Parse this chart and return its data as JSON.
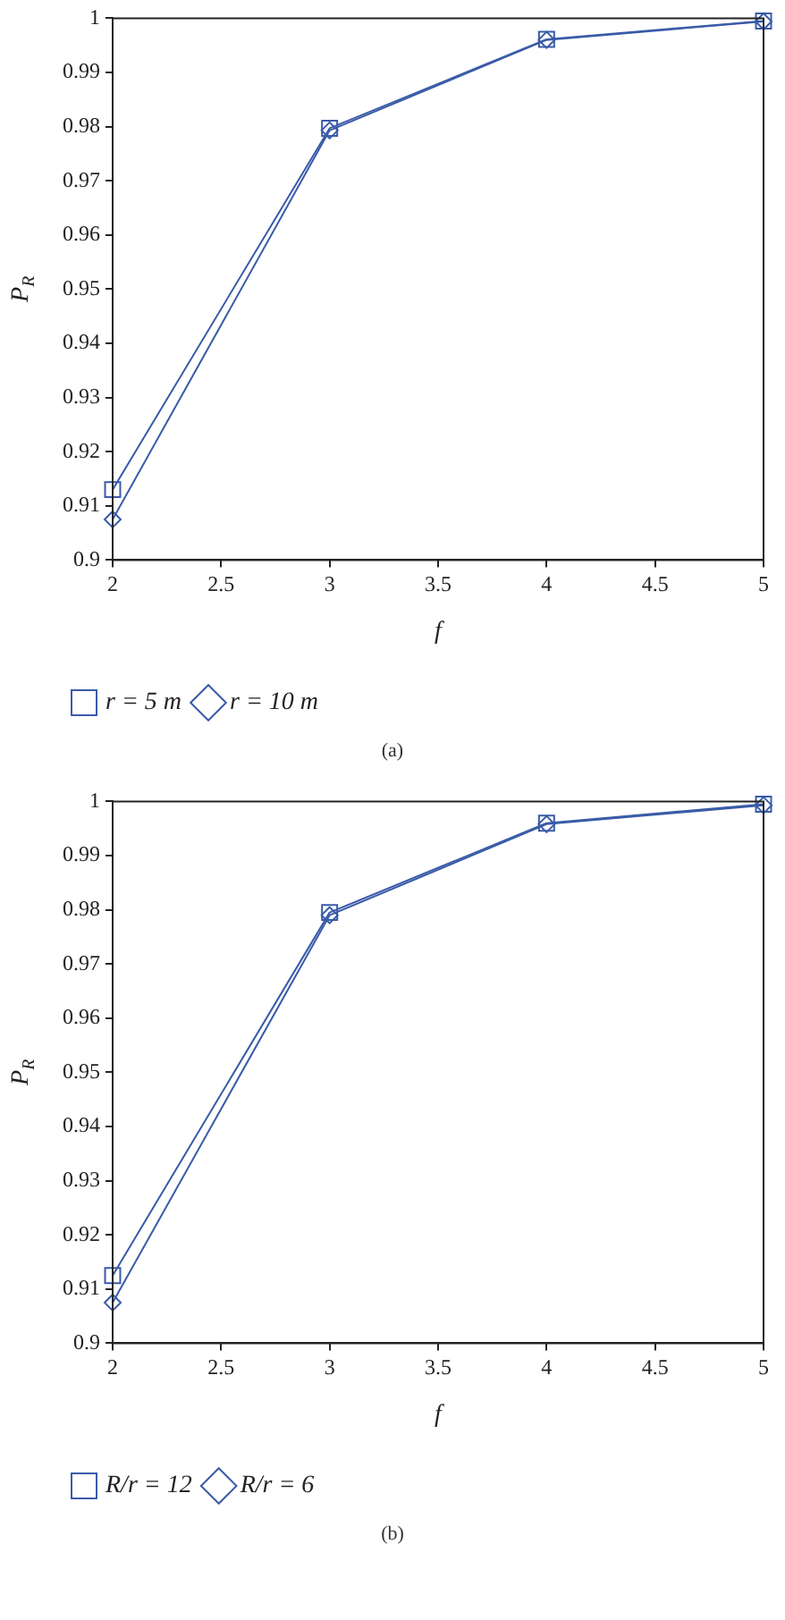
{
  "chart_data": [
    {
      "type": "line",
      "xlabel": "f",
      "ylabel": "P$_{R}$",
      "x": [
        2,
        3,
        4,
        5
      ],
      "series": [
        {
          "name": "r = 5 m",
          "color": "#3a5ba8",
          "marker": "square",
          "values": [
            0.913,
            0.9797,
            0.9961,
            0.9995
          ]
        },
        {
          "name": "r = 10 m",
          "color": "#3a5ba8",
          "marker": "diamond",
          "values": [
            0.9075,
            0.9793,
            0.996,
            0.9994
          ]
        }
      ],
      "xlim": [
        2,
        5
      ],
      "xticks": [
        2,
        2.5,
        3,
        3.5,
        4,
        4.5,
        5
      ],
      "ylim": [
        0.9,
        1
      ],
      "yticks": [
        0.9,
        0.91,
        0.92,
        0.93,
        0.94,
        0.95,
        0.96,
        0.97,
        0.98,
        0.99,
        1
      ],
      "grid": false,
      "legend": "bottom",
      "annotations": [
        "(a)"
      ]
    },
    {
      "type": "line",
      "xlabel": "f",
      "ylabel": "P$_{R}$",
      "x": [
        2,
        3,
        4,
        5
      ],
      "series": [
        {
          "name": "R/r = 12",
          "color": "#3a5ba8",
          "marker": "square",
          "values": [
            0.9125,
            0.9795,
            0.996,
            0.9995
          ]
        },
        {
          "name": "R/r = 6",
          "color": "#3a5ba8",
          "marker": "diamond",
          "values": [
            0.9075,
            0.979,
            0.9958,
            0.9993
          ]
        }
      ],
      "xlim": [
        2,
        5
      ],
      "xticks": [
        2,
        2.5,
        3,
        3.5,
        4,
        4.5,
        5
      ],
      "ylim": [
        0.9,
        1
      ],
      "yticks": [
        0.9,
        0.91,
        0.92,
        0.93,
        0.94,
        0.95,
        0.96,
        0.97,
        0.98,
        0.99,
        1
      ],
      "grid": false,
      "legend": "bottom",
      "annotations": [
        "(b)"
      ]
    }
  ]
}
